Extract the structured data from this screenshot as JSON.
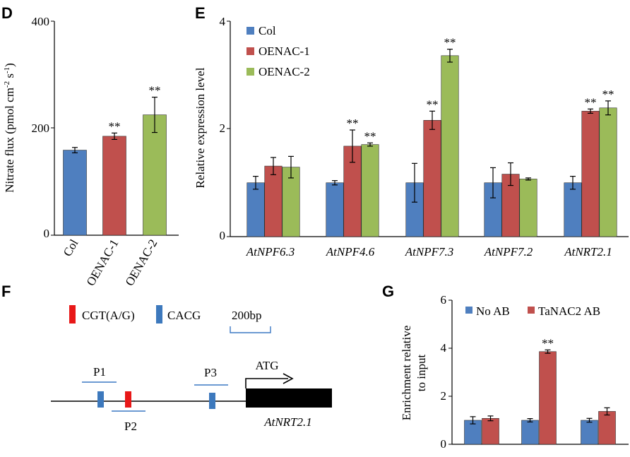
{
  "colors": {
    "blue": "#4f7fbf",
    "red": "#c0504d",
    "green": "#9bbb59",
    "motif_red": "#e81818",
    "motif_blue": "#3d79bd",
    "line": "#3b78c4"
  },
  "chart_data": [
    {
      "panel": "D",
      "type": "bar",
      "categories": [
        "Col",
        "OENAC-1",
        "OENAC-2"
      ],
      "values": [
        159,
        185,
        225
      ],
      "errors": [
        5,
        6,
        33
      ],
      "significance": [
        "",
        "**",
        "**"
      ],
      "colors": [
        "#4f7fbf",
        "#c0504d",
        "#9bbb59"
      ],
      "ylabel": "Nitrate flux (pmol cm-2 s-1)",
      "ylim": [
        0,
        400
      ],
      "yticks": [
        0,
        200,
        400
      ]
    },
    {
      "panel": "E",
      "type": "bar",
      "categories": [
        "AtNPF6.3",
        "AtNPF4.6",
        "AtNPF7.3",
        "AtNPF7.2",
        "AtNRT2.1"
      ],
      "series": [
        {
          "name": "Col",
          "color": "#4f7fbf",
          "values": [
            1.0,
            1.0,
            1.0,
            1.0,
            1.0
          ],
          "errors": [
            0.12,
            0.04,
            0.36,
            0.28,
            0.12
          ],
          "significance": [
            "",
            "",
            "",
            "",
            ""
          ]
        },
        {
          "name": "OENAC-1",
          "color": "#c0504d",
          "values": [
            1.31,
            1.68,
            2.16,
            1.16,
            2.33
          ],
          "errors": [
            0.16,
            0.3,
            0.17,
            0.21,
            0.04
          ],
          "significance": [
            "",
            "**",
            "**",
            "",
            "**"
          ]
        },
        {
          "name": "OENAC-2",
          "color": "#9bbb59",
          "values": [
            1.29,
            1.71,
            3.36,
            1.07,
            2.39
          ],
          "errors": [
            0.2,
            0.03,
            0.12,
            0.02,
            0.13
          ],
          "significance": [
            "",
            "**",
            "**",
            "",
            "**"
          ]
        }
      ],
      "ylabel": "Relative expression level",
      "ylim": [
        0,
        4
      ],
      "yticks": [
        0,
        2,
        4
      ],
      "legend": "top-left"
    },
    {
      "panel": "G",
      "type": "bar",
      "categories": [
        "",
        "",
        ""
      ],
      "series": [
        {
          "name": "No AB",
          "color": "#4f7fbf",
          "values": [
            1.0,
            1.0,
            1.0
          ],
          "errors": [
            0.15,
            0.07,
            0.08
          ],
          "significance": [
            "",
            "",
            ""
          ]
        },
        {
          "name": "TaNAC2 AB",
          "color": "#c0504d",
          "values": [
            1.08,
            3.86,
            1.37
          ],
          "errors": [
            0.1,
            0.07,
            0.15
          ],
          "significance": [
            "",
            "**",
            ""
          ]
        }
      ],
      "ylabel_lines": [
        "Enrichment relative",
        "to input"
      ],
      "ylim": [
        0,
        6
      ],
      "yticks": [
        0,
        2,
        4,
        6
      ],
      "legend": "top"
    }
  ],
  "panel_f": {
    "letter": "F",
    "legend_motif1": "CGT(A/G)",
    "legend_motif2": "CACG",
    "scale_label": "200bp",
    "primers": [
      "P1",
      "P2",
      "P3"
    ],
    "start_label": "ATG",
    "gene_label": "AtNRT2.1"
  },
  "panel_letters": [
    "D",
    "E",
    "F",
    "G"
  ]
}
